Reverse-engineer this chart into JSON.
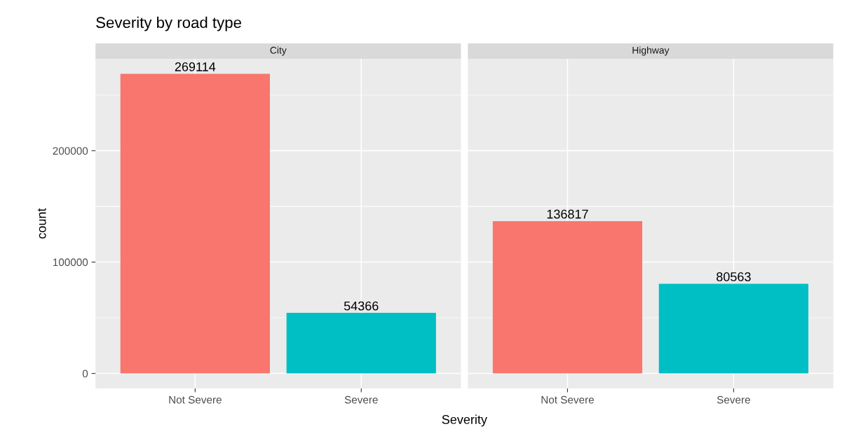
{
  "chart_data": [
    {
      "type": "bar",
      "title": "Severity by road type",
      "subtitle": "City",
      "ylabel": "count",
      "xlabel": "Severity",
      "categories": [
        "Not Severe",
        "Severe"
      ],
      "values": [
        269114,
        54366
      ],
      "colors": [
        "#f8766d",
        "#00bfc4"
      ],
      "data_labels": true,
      "ylim": [
        -13456,
        282570
      ],
      "yticks": [
        0,
        100000,
        200000
      ],
      "grid": true,
      "legend": false
    },
    {
      "type": "bar",
      "subtitle": "Highway",
      "categories": [
        "Not Severe",
        "Severe"
      ],
      "values": [
        136817,
        80563
      ],
      "colors": [
        "#f8766d",
        "#00bfc4"
      ],
      "data_labels": true,
      "ylim": [
        -13456,
        282570
      ],
      "yticks": [
        0,
        100000,
        200000
      ],
      "grid": true,
      "legend": false,
      "tick_labels": "x"
    }
  ]
}
